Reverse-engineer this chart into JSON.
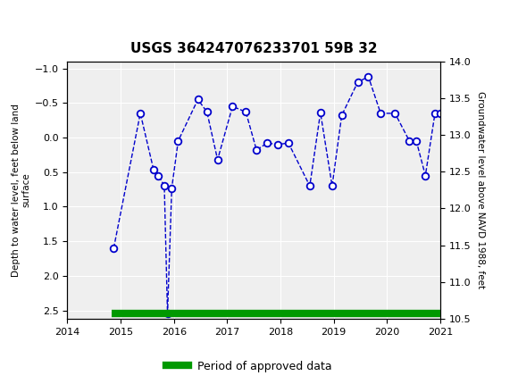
{
  "title": "USGS 364247076233701 59B 32",
  "ylabel_left": "Depth to water level, feet below land\nsurface",
  "ylabel_right": "Groundwater level above NAVD 1988, feet",
  "header_color": "#1a6b3c",
  "xlim": [
    2014.0,
    2021.0
  ],
  "ylim_left": [
    2.62,
    -1.1
  ],
  "ylim_right": [
    10.5,
    14.0
  ],
  "yticks_left": [
    -1.0,
    -0.5,
    0.0,
    0.5,
    1.0,
    1.5,
    2.0,
    2.5
  ],
  "yticks_right": [
    10.5,
    11.0,
    11.5,
    12.0,
    12.5,
    13.0,
    13.5,
    14.0
  ],
  "xticks": [
    2014,
    2015,
    2016,
    2017,
    2018,
    2019,
    2020,
    2021
  ],
  "data_x": [
    2014.87,
    2015.37,
    2015.62,
    2015.71,
    2015.82,
    2015.88,
    2015.96,
    2016.08,
    2016.45,
    2016.62,
    2016.82,
    2017.1,
    2017.35,
    2017.55,
    2017.75,
    2017.95,
    2018.15,
    2018.55,
    2018.75,
    2018.97,
    2019.15,
    2019.45,
    2019.65,
    2019.88,
    2020.15,
    2020.42,
    2020.55,
    2020.72,
    2020.9,
    2021.0
  ],
  "data_y": [
    1.6,
    -0.35,
    0.47,
    0.55,
    0.7,
    2.55,
    0.73,
    0.05,
    -0.55,
    -0.37,
    0.32,
    -0.45,
    -0.37,
    0.18,
    0.08,
    0.1,
    0.08,
    0.7,
    -0.36,
    0.7,
    -0.32,
    -0.8,
    -0.88,
    -0.35,
    -0.35,
    0.05,
    0.05,
    0.55,
    -0.35,
    -0.35
  ],
  "line_color": "#0000cc",
  "marker_color": "#0000cc",
  "approved_color": "#009900",
  "approved_y": 2.55,
  "approved_x_start": 2014.83,
  "approved_x_end": 2021.02,
  "legend_label": "Period of approved data",
  "plot_bg_color": "#efefef"
}
